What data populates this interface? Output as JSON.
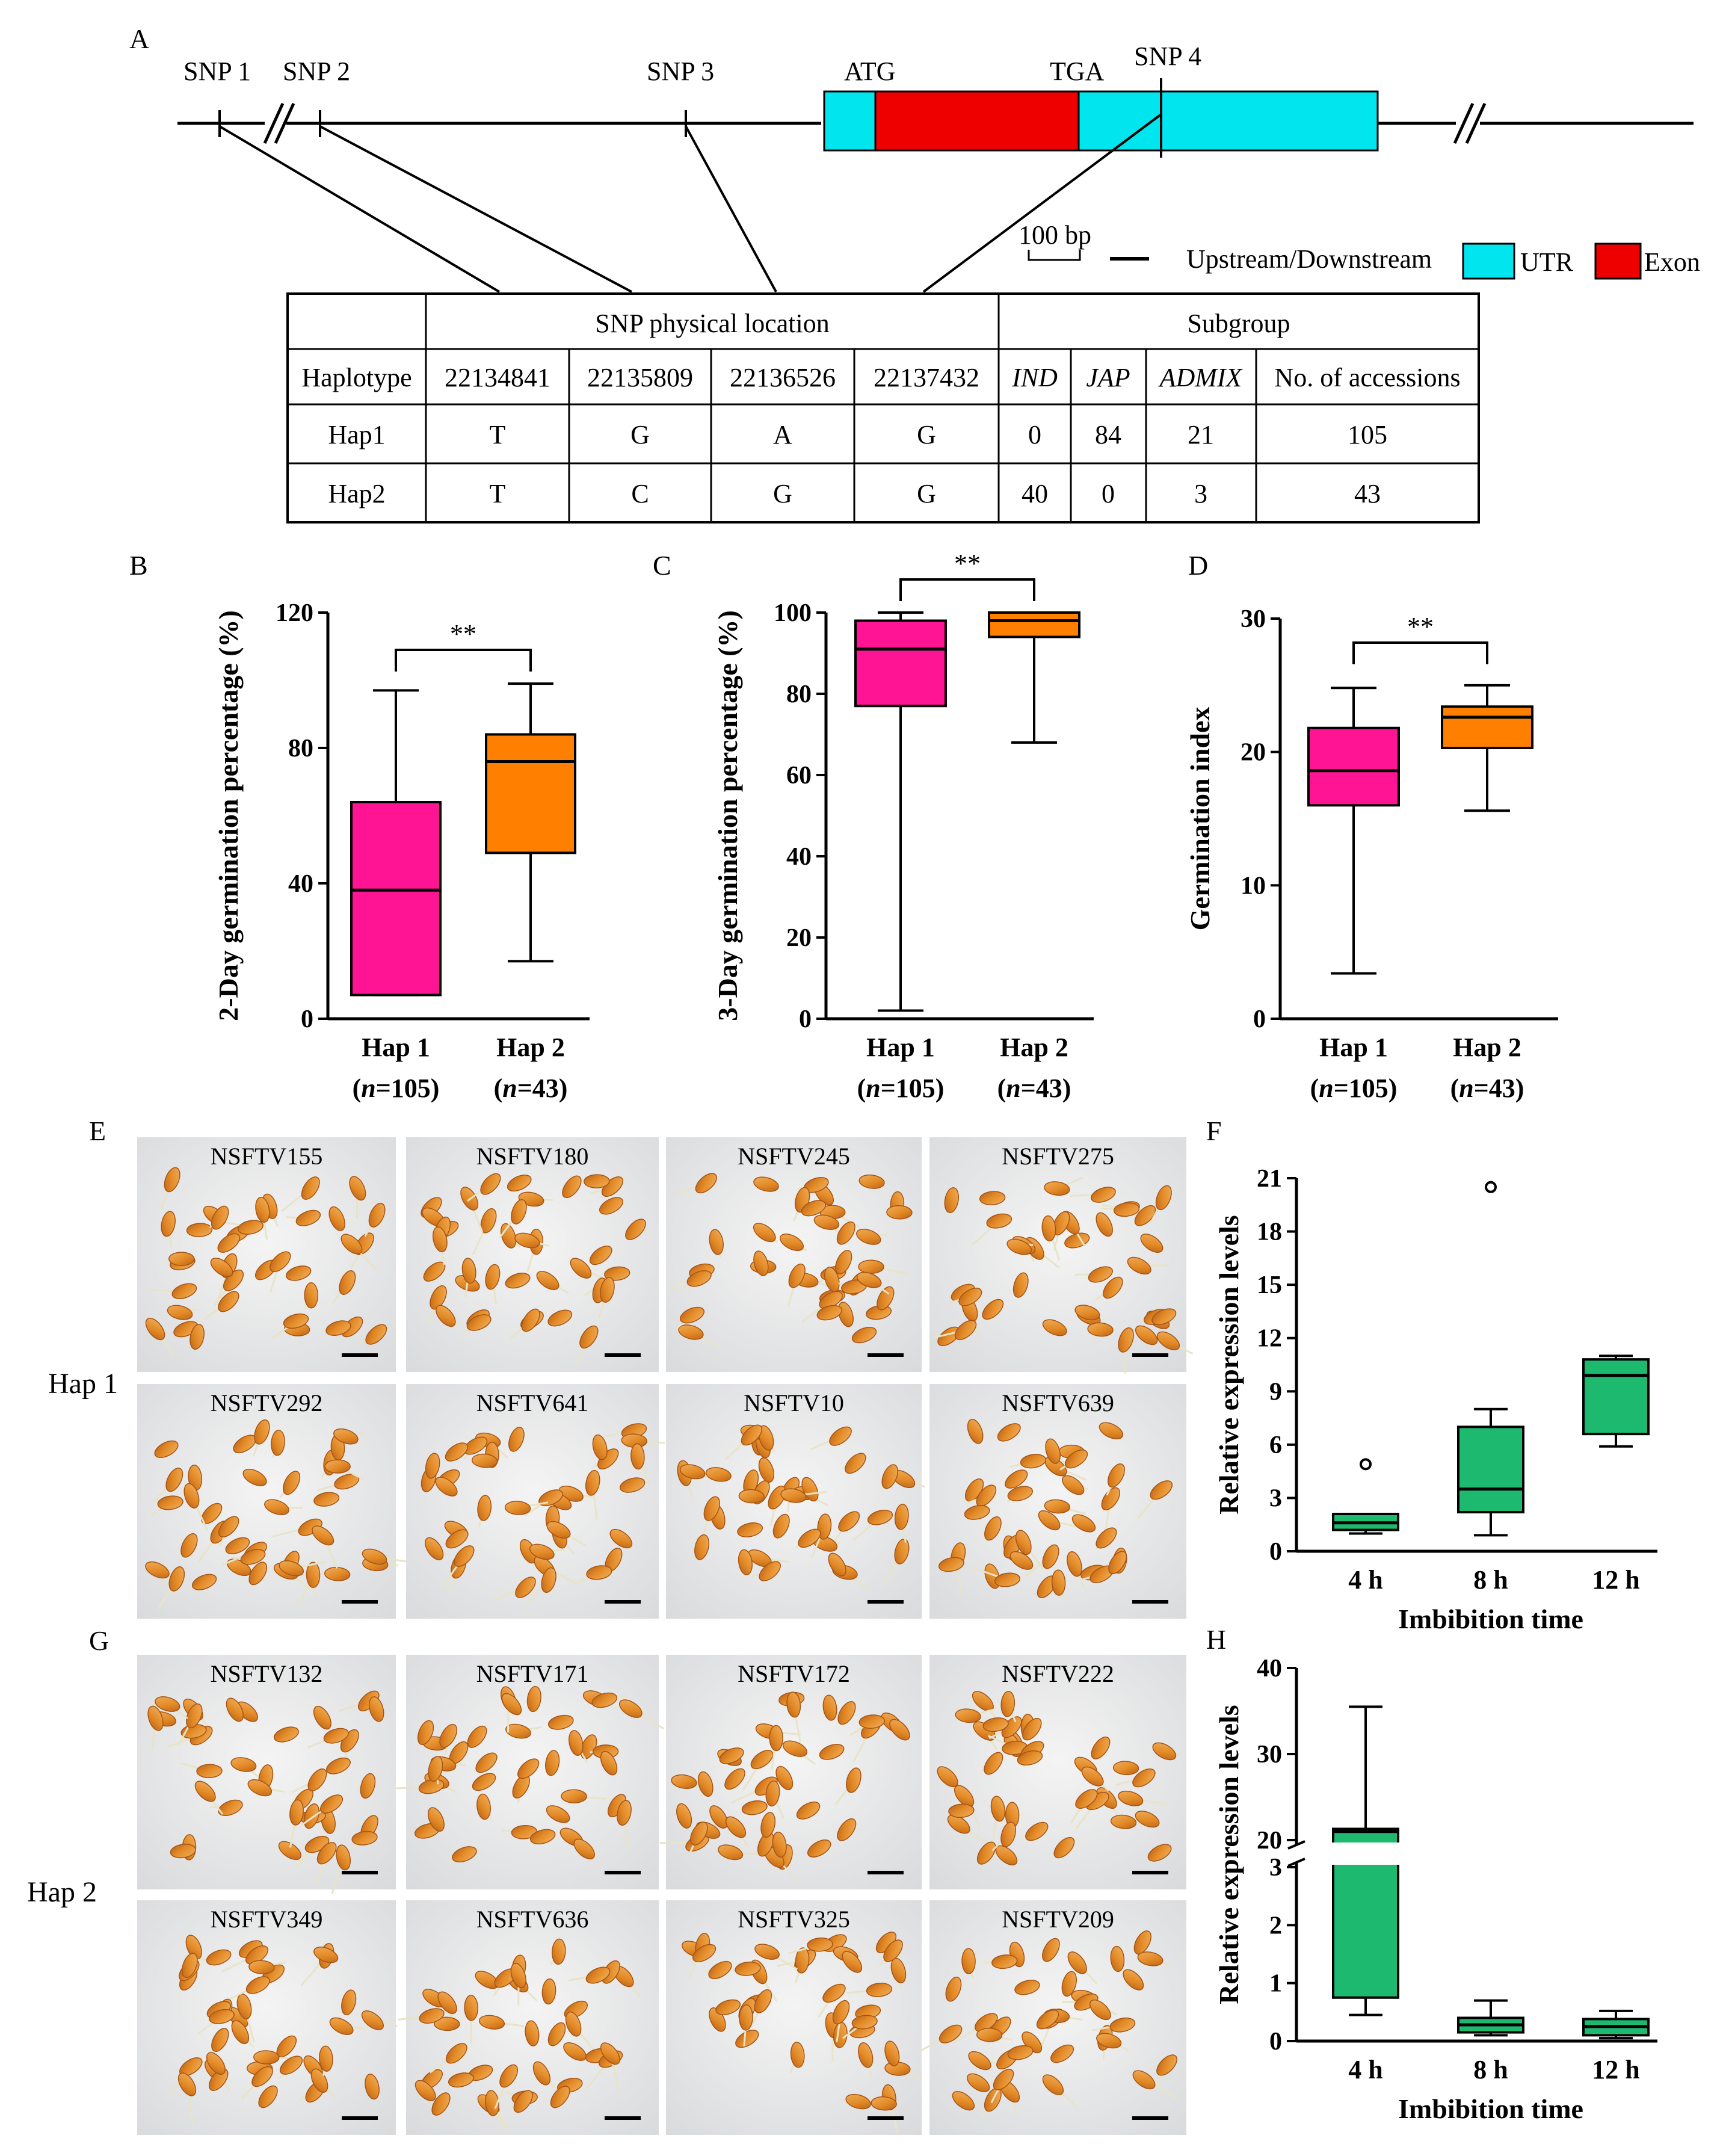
{
  "panel_letters": {
    "A": "A",
    "B": "B",
    "C": "C",
    "D": "D",
    "E": "E",
    "F": "F",
    "G": "G",
    "H": "H"
  },
  "gene_model": {
    "snp_labels": [
      "SNP 1",
      "SNP 2",
      "SNP 3",
      "SNP 4"
    ],
    "start_codon": "ATG",
    "stop_codon": "TGA",
    "scale_label": "100 bp",
    "legend": {
      "line": "Upstream/Downstream",
      "utr": "UTR",
      "exon": "Exon"
    },
    "colors": {
      "utr": "#00E5EE",
      "exon": "#EE0000",
      "line": "#000000"
    }
  },
  "haplotype_table": {
    "header_group1": "SNP physical location",
    "header_group2": "Subgroup",
    "columns": [
      "Haplotype",
      "22134841",
      "22135809",
      "22136526",
      "22137432",
      "IND",
      "JAP",
      "ADMIX",
      "No. of accessions"
    ],
    "rows": [
      [
        "Hap1",
        "T",
        "G",
        "A",
        "G",
        "0",
        "84",
        "21",
        "105"
      ],
      [
        "Hap2",
        "T",
        "C",
        "G",
        "G",
        "40",
        "0",
        "3",
        "43"
      ]
    ]
  },
  "chart_data": [
    {
      "panel": "B",
      "type": "box",
      "ylabel": "2-Day germination percentage (%)",
      "ylim": [
        0,
        120
      ],
      "yticks": [
        "0",
        "40",
        "80",
        "120"
      ],
      "categories": [
        "Hap 1",
        "Hap 2"
      ],
      "n_labels": [
        "105",
        "43"
      ],
      "significance": "**",
      "boxes": [
        {
          "min": 7,
          "q1": 7,
          "median": 38,
          "q3": 64,
          "max": 97,
          "color": "#FF1493"
        },
        {
          "min": 17,
          "q1": 49,
          "median": 76,
          "q3": 84,
          "max": 99,
          "color": "#FF8000"
        }
      ]
    },
    {
      "panel": "C",
      "type": "box",
      "ylabel": "3-Day germination percentage (%)",
      "ylim": [
        0,
        100
      ],
      "yticks": [
        "0",
        "20",
        "40",
        "60",
        "80",
        "100"
      ],
      "categories": [
        "Hap 1",
        "Hap 2"
      ],
      "n_labels": [
        "105",
        "43"
      ],
      "significance": "**",
      "boxes": [
        {
          "min": 2,
          "q1": 77,
          "median": 91,
          "q3": 98,
          "max": 100,
          "color": "#FF1493"
        },
        {
          "min": 68,
          "q1": 94,
          "median": 98,
          "q3": 100,
          "max": 100,
          "color": "#FF8000"
        }
      ]
    },
    {
      "panel": "D",
      "type": "box",
      "ylabel": "Germination index",
      "ylim": [
        0,
        30
      ],
      "yticks": [
        "0",
        "10",
        "20",
        "30"
      ],
      "categories": [
        "Hap 1",
        "Hap 2"
      ],
      "n_labels": [
        "105",
        "43"
      ],
      "significance": "**",
      "boxes": [
        {
          "min": 3.4,
          "q1": 16,
          "median": 18.6,
          "q3": 21.8,
          "max": 24.8,
          "color": "#FF1493"
        },
        {
          "min": 15.6,
          "q1": 20.3,
          "median": 22.6,
          "q3": 23.4,
          "max": 25,
          "color": "#FF8000"
        }
      ]
    },
    {
      "panel": "F",
      "type": "box",
      "ylabel": "Relative expression levels",
      "xlabel": "Imbibition time",
      "ylim": [
        0,
        21
      ],
      "yticks": [
        "0",
        "3",
        "6",
        "9",
        "12",
        "15",
        "18",
        "21"
      ],
      "categories": [
        "4 h",
        "8 h",
        "12 h"
      ],
      "boxes": [
        {
          "min": 1,
          "q1": 1.2,
          "median": 1.6,
          "q3": 2.1,
          "max": 2.1,
          "outlier": 4.9,
          "color": "#1DB96F"
        },
        {
          "min": 0.9,
          "q1": 2.2,
          "median": 3.5,
          "q3": 7,
          "max": 8,
          "outlier": 20.5,
          "color": "#1DB96F"
        },
        {
          "min": 5.9,
          "q1": 6.6,
          "median": 9.9,
          "q3": 10.8,
          "max": 11,
          "color": "#1DB96F"
        }
      ]
    },
    {
      "panel": "H",
      "type": "box",
      "ylabel": "Relative expression levels",
      "xlabel": "Imbibition time",
      "ylim": [
        0,
        40
      ],
      "axis_break": [
        3,
        20
      ],
      "yticks": [
        "0",
        "1",
        "2",
        "3",
        "20",
        "30",
        "40"
      ],
      "categories": [
        "4 h",
        "8 h",
        "12 h"
      ],
      "boxes": [
        {
          "min": 0.45,
          "q1": 0.75,
          "median": 21,
          "q3": 21.3,
          "max": 35.5,
          "color": "#1DB96F"
        },
        {
          "min": 0.1,
          "q1": 0.15,
          "median": 0.28,
          "q3": 0.4,
          "max": 0.7,
          "color": "#1DB96F"
        },
        {
          "min": 0.05,
          "q1": 0.1,
          "median": 0.25,
          "q3": 0.38,
          "max": 0.52,
          "color": "#1DB96F"
        }
      ]
    }
  ],
  "photos": {
    "hap1_label": "Hap 1",
    "hap2_label": "Hap 2",
    "hap1": [
      "NSFTV155",
      "NSFTV180",
      "NSFTV245",
      "NSFTV275",
      "NSFTV292",
      "NSFTV641",
      "NSFTV10",
      "NSFTV639"
    ],
    "hap2": [
      "NSFTV132",
      "NSFTV171",
      "NSFTV172",
      "NSFTV222",
      "NSFTV349",
      "NSFTV636",
      "NSFTV325",
      "NSFTV209"
    ]
  }
}
